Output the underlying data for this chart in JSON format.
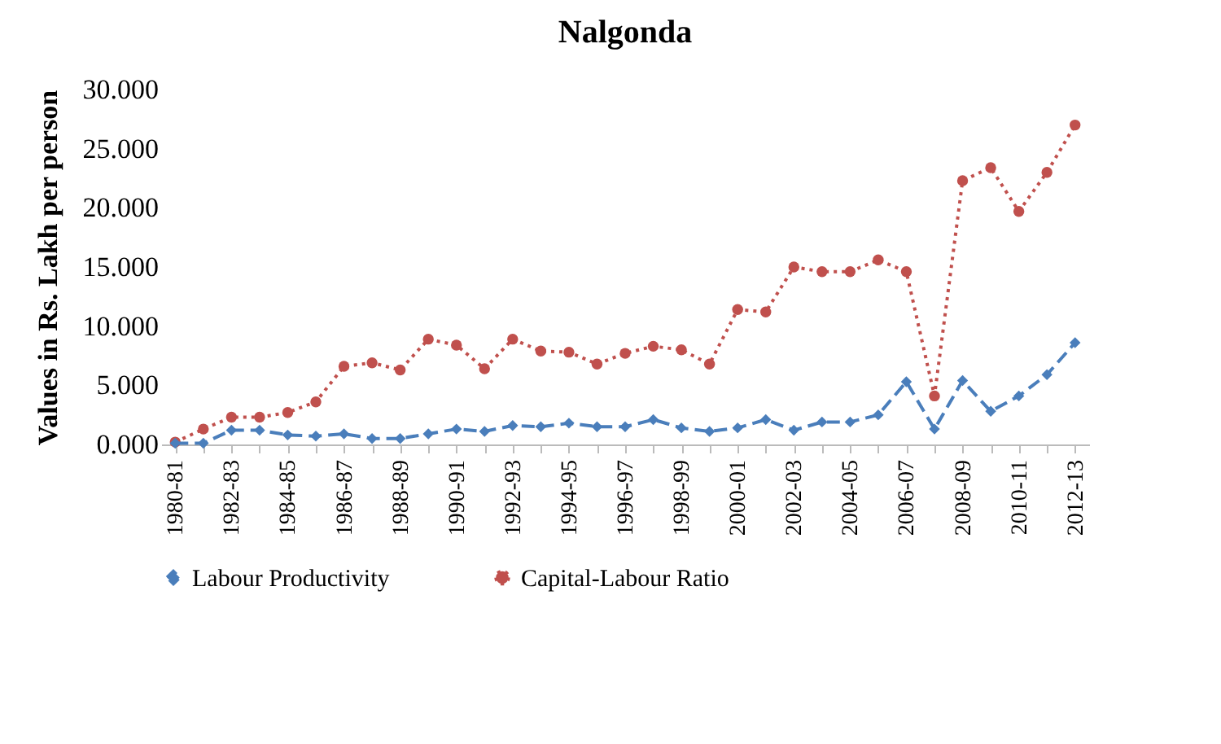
{
  "chart_data": {
    "type": "line",
    "title": "Nalgonda",
    "ylabel": "Values in Rs. Lakh per person",
    "categories": [
      "1980-81",
      null,
      "1982-83",
      null,
      "1984-85",
      null,
      "1986-87",
      null,
      "1988-89",
      null,
      "1990-91",
      null,
      "1992-93",
      null,
      "1994-95",
      null,
      "1996-97",
      null,
      "1998-99",
      null,
      "2000-01",
      null,
      "2002-03",
      null,
      "2004-05",
      null,
      "2006-07",
      null,
      "2008-09",
      null,
      "2010-11",
      null,
      "2012-13"
    ],
    "series": [
      {
        "name": "Labour Productivity",
        "color": "#4a7ebb",
        "marker": "diamond",
        "line_style": "dashed",
        "values": [
          0.1,
          0.1,
          1.2,
          1.2,
          0.8,
          0.7,
          0.9,
          0.5,
          0.5,
          0.9,
          1.3,
          1.1,
          1.6,
          1.5,
          1.8,
          1.5,
          1.5,
          2.1,
          1.4,
          1.1,
          1.4,
          2.1,
          1.2,
          1.9,
          1.9,
          2.5,
          5.3,
          1.3,
          5.4,
          2.8,
          4.1,
          5.9,
          8.6
        ]
      },
      {
        "name": "Capital-Labour Ratio",
        "color": "#c0504d",
        "marker": "circle",
        "line_style": "dotted",
        "values": [
          0.2,
          1.3,
          2.3,
          2.3,
          2.7,
          3.6,
          6.6,
          6.9,
          6.3,
          8.9,
          8.4,
          6.4,
          8.9,
          7.9,
          7.8,
          6.8,
          7.7,
          8.3,
          8.0,
          6.8,
          11.4,
          11.2,
          15.0,
          14.6,
          14.6,
          15.6,
          14.6,
          4.1,
          22.3,
          23.4,
          19.7,
          23.0,
          27.0
        ]
      }
    ],
    "ylim": [
      0,
      30
    ],
    "yticks": [
      {
        "value": 0,
        "label": "0.000"
      },
      {
        "value": 5,
        "label": "5.000"
      },
      {
        "value": 10,
        "label": "10.000"
      },
      {
        "value": 15,
        "label": "15.000"
      },
      {
        "value": 20,
        "label": "20.000"
      },
      {
        "value": 25,
        "label": "25.000"
      },
      {
        "value": 30,
        "label": "30.000"
      }
    ],
    "grid": false,
    "legend": "bottom"
  }
}
